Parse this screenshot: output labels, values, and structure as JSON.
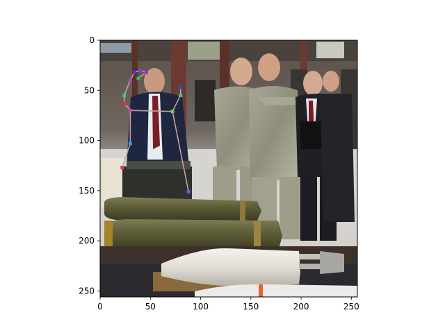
{
  "axes": {
    "x_ticks": [
      "0",
      "50",
      "100",
      "150",
      "200",
      "250"
    ],
    "y_ticks": [
      "0",
      "50",
      "100",
      "150",
      "200",
      "250"
    ],
    "x_tick_values": [
      0,
      50,
      100,
      150,
      200,
      250
    ],
    "y_tick_values": [
      0,
      50,
      100,
      150,
      200,
      250
    ],
    "xlim": [
      0,
      256
    ],
    "ylim": [
      256,
      0
    ]
  },
  "image": {
    "description_type": "photo",
    "subject": "officials and soldiers viewing munitions display"
  },
  "keypoints": [
    {
      "x": 40,
      "y": 30,
      "color": "#7b3fe6"
    },
    {
      "x": 34,
      "y": 32,
      "color": "#5533ee"
    },
    {
      "x": 46,
      "y": 32,
      "color": "#9933cc"
    },
    {
      "x": 38,
      "y": 38,
      "color": "#33bb66"
    },
    {
      "x": 30,
      "y": 40,
      "color": "#aa44cc"
    },
    {
      "x": 80,
      "y": 47,
      "color": "#3344dd"
    },
    {
      "x": 80,
      "y": 55,
      "color": "#33cc99"
    },
    {
      "x": 24,
      "y": 55,
      "color": "#33cc88"
    },
    {
      "x": 24,
      "y": 63,
      "color": "#dd3344"
    },
    {
      "x": 30,
      "y": 70,
      "color": "#cc44aa"
    },
    {
      "x": 72,
      "y": 71,
      "color": "#66cc66"
    },
    {
      "x": 30,
      "y": 103,
      "color": "#3399dd"
    },
    {
      "x": 22,
      "y": 127,
      "color": "#dd3366"
    },
    {
      "x": 88,
      "y": 151,
      "color": "#5566ee"
    }
  ],
  "skeleton_color": "#c8a29a"
}
